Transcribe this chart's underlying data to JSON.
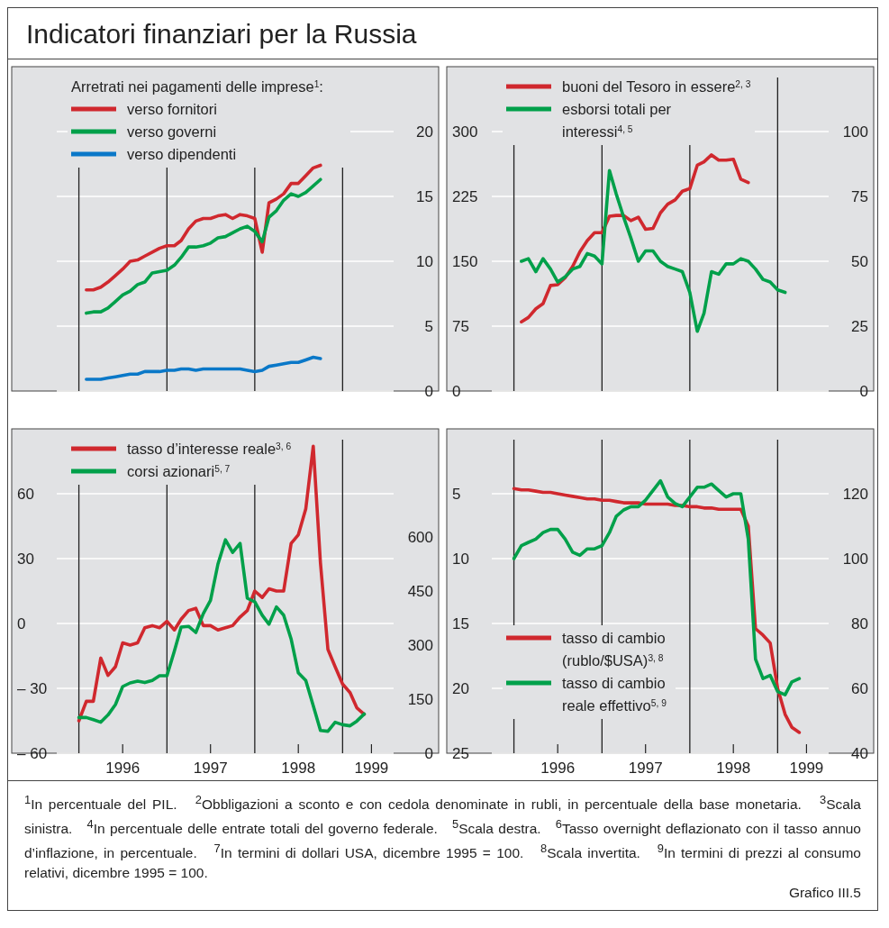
{
  "chart_data": [
    {
      "type": "line",
      "title": "Indicatori finanziari per la Russia",
      "legend_title": "Arretrati nei pagamenti delle imprese$^{1}$:",
      "legend": "top left",
      "grid": true,
      "tick_labels": "y",
      "xlim": [
        "1995-10",
        "1999-08"
      ],
      "xticks": [
        {
          "value": "1996-01",
          "label": null
        },
        {
          "value": "1997-01",
          "label": null
        },
        {
          "value": "1998-01",
          "label": null
        },
        {
          "value": "1999-01",
          "label": null
        }
      ],
      "y2lim": [
        0,
        25
      ],
      "y2ticks": [
        0,
        5,
        10,
        15,
        20
      ],
      "x": [
        "1996-02",
        "1996-03",
        "1996-04",
        "1996-05",
        "1996-06",
        "1996-07",
        "1996-08",
        "1996-09",
        "1996-10",
        "1996-11",
        "1996-12",
        "1997-01",
        "1997-02",
        "1997-03",
        "1997-04",
        "1997-05",
        "1997-06",
        "1997-07",
        "1997-08",
        "1997-09",
        "1997-10",
        "1997-11",
        "1997-12",
        "1998-01",
        "1998-02",
        "1998-03",
        "1998-04",
        "1998-05",
        "1998-06",
        "1998-07",
        "1998-08",
        "1998-09",
        "1998-10"
      ],
      "series": [
        {
          "name": "verso fornitori",
          "color": "#d0282e",
          "axis": "y2",
          "values": [
            7.8,
            7.8,
            8.0,
            8.4,
            8.9,
            9.4,
            10.0,
            10.1,
            10.4,
            10.7,
            11.0,
            11.2,
            11.2,
            11.6,
            12.5,
            13.1,
            13.3,
            13.3,
            13.5,
            13.6,
            13.3,
            13.6,
            13.5,
            13.3,
            10.7,
            14.5,
            14.8,
            15.2,
            16.0,
            16.0,
            16.6,
            17.2,
            17.4
          ]
        },
        {
          "name": "verso governi",
          "color": "#00a04a",
          "axis": "y2",
          "values": [
            6.0,
            6.1,
            6.1,
            6.4,
            6.9,
            7.4,
            7.7,
            8.2,
            8.4,
            9.1,
            9.2,
            9.3,
            9.7,
            10.3,
            11.1,
            11.1,
            11.2,
            11.4,
            11.8,
            11.9,
            12.2,
            12.5,
            12.7,
            12.3,
            11.5,
            13.4,
            13.9,
            14.7,
            15.2,
            15.0,
            15.3,
            15.8,
            16.3
          ]
        },
        {
          "name": "verso dipendenti",
          "color": "#0a78c8",
          "axis": "y2",
          "values": [
            0.9,
            0.9,
            0.9,
            1.0,
            1.1,
            1.2,
            1.3,
            1.3,
            1.5,
            1.5,
            1.5,
            1.6,
            1.6,
            1.7,
            1.7,
            1.6,
            1.7,
            1.7,
            1.7,
            1.7,
            1.7,
            1.7,
            1.6,
            1.5,
            1.6,
            1.9,
            2.0,
            2.1,
            2.2,
            2.2,
            2.4,
            2.6,
            2.5
          ]
        }
      ],
      "annotations": [
        "$^{1}$In percentuale del PIL.",
        "$^{2}$Obbligazioni a sconto e con cedola denominate in rubli, in percentuale della base monetaria.",
        "$^{3}$Scala sinistra.",
        "$^{4}$In percentuale delle entrate totali del governo federale.",
        "$^{5}$Scala destra.",
        "$^{6}$Tasso overnight deflazionato con il tasso annuo d’inflazione, in percentuale.",
        "$^{7}$In termini di dollari USA, dicembre 1995 = 100.",
        "$^{8}$Scala invertita.",
        "$^{9}$In termini di prezzi al consumo relativi, dicembre 1995 = 100.",
        "Grafico III.5"
      ]
    },
    {
      "type": "line",
      "legend": "top",
      "grid": true,
      "tick_labels": "y",
      "xlim": [
        "1995-10",
        "1999-08"
      ],
      "xticks": [
        {
          "value": "1996-01",
          "label": null
        },
        {
          "value": "1997-01",
          "label": null
        },
        {
          "value": "1998-01",
          "label": null
        },
        {
          "value": "1999-01",
          "label": null
        }
      ],
      "ylim": [
        0,
        375
      ],
      "yticks": [
        0,
        75,
        150,
        225,
        300
      ],
      "y2lim": [
        0,
        125
      ],
      "y2ticks": [
        0,
        25,
        50,
        75,
        100
      ],
      "x": [
        "1996-02",
        "1996-03",
        "1996-04",
        "1996-05",
        "1996-06",
        "1996-07",
        "1996-08",
        "1996-09",
        "1996-10",
        "1996-11",
        "1996-12",
        "1997-01",
        "1997-02",
        "1997-03",
        "1997-04",
        "1997-05",
        "1997-06",
        "1997-07",
        "1997-08",
        "1997-09",
        "1997-10",
        "1997-11",
        "1997-12",
        "1998-01",
        "1998-02",
        "1998-03",
        "1998-04",
        "1998-05",
        "1998-06",
        "1998-07",
        "1998-08",
        "1998-09",
        "1998-10",
        "1998-11",
        "1998-12",
        "1999-01",
        "1999-02"
      ],
      "series": [
        {
          "name": "buoni del Tesoro in essere$^{2, 3}$",
          "color": "#d0282e",
          "values": [
            80,
            85,
            95,
            101,
            122,
            123,
            131,
            144,
            161,
            174,
            183,
            183,
            202,
            203,
            203,
            197,
            201,
            187,
            188,
            206,
            216,
            221,
            231,
            234,
            261,
            265,
            273,
            267,
            267,
            268,
            245,
            241,
            null,
            null,
            null,
            null,
            null
          ]
        },
        {
          "name": "esborsi totali per interessi$^{4, 5}$",
          "color": "#00a04a",
          "axis": "y2",
          "values": [
            50,
            51,
            46,
            51,
            47,
            42,
            44,
            47,
            48,
            53,
            52,
            49,
            85,
            76,
            67,
            59,
            50,
            54,
            54,
            50,
            48,
            47,
            46,
            38,
            23,
            30,
            46,
            45,
            49,
            49,
            51,
            50,
            47,
            43,
            42,
            39,
            38
          ]
        }
      ]
    },
    {
      "type": "line",
      "legend": "top",
      "grid": true,
      "xlim": [
        "1995-10",
        "1999-08"
      ],
      "xticks": [
        {
          "value": "1996-01",
          "label": null
        },
        {
          "value": "1997-01",
          "label": null
        },
        {
          "value": "1998-01",
          "label": null
        },
        {
          "value": "1999-01",
          "label": null
        },
        {
          "value": "1996-07",
          "label": "1996"
        },
        {
          "value": "1997-07",
          "label": "1997"
        },
        {
          "value": "1998-07",
          "label": "1998"
        },
        {
          "value": "1999-05",
          "label": "1999"
        }
      ],
      "ylim": [
        -60,
        90
      ],
      "yticks": [
        {
          "value": -60,
          "label": "– 60"
        },
        {
          "value": -30,
          "label": "– 30"
        },
        0,
        30,
        60
      ],
      "y2lim": [
        0,
        900
      ],
      "y2ticks": [
        0,
        150,
        300,
        450,
        600
      ],
      "x": [
        "1996-01",
        "1996-02",
        "1996-03",
        "1996-04",
        "1996-05",
        "1996-06",
        "1996-07",
        "1996-08",
        "1996-09",
        "1996-10",
        "1996-11",
        "1996-12",
        "1997-01",
        "1997-02",
        "1997-03",
        "1997-04",
        "1997-05",
        "1997-06",
        "1997-07",
        "1997-08",
        "1997-09",
        "1997-10",
        "1997-11",
        "1997-12",
        "1998-01",
        "1998-02",
        "1998-03",
        "1998-04",
        "1998-05",
        "1998-06",
        "1998-07",
        "1998-08",
        "1998-09",
        "1998-10",
        "1998-11",
        "1998-12",
        "1999-01",
        "1999-02",
        "1999-03",
        "1999-04"
      ],
      "series": [
        {
          "name": "tasso d’interesse reale$^{3, 6}$",
          "color": "#d0282e",
          "values": [
            -45,
            -36,
            -36,
            -16,
            -24,
            -20,
            -9,
            -10,
            -9,
            -2,
            -1,
            -2,
            1,
            -3,
            2,
            6,
            7,
            -1,
            -1,
            -3,
            -2,
            -1,
            3,
            6,
            15,
            12,
            16,
            15,
            15,
            37,
            41,
            53,
            82,
            28,
            -12,
            -20,
            -28,
            -32,
            -39,
            -42
          ]
        },
        {
          "name": "corsi azionari$^{5, 7}$",
          "color": "#00a04a",
          "axis": "y2",
          "values": [
            99,
            99,
            93,
            86,
            106,
            135,
            185,
            195,
            200,
            196,
            202,
            215,
            215,
            284,
            350,
            352,
            335,
            387,
            424,
            525,
            592,
            557,
            582,
            430,
            420,
            383,
            358,
            406,
            383,
            317,
            223,
            202,
            132,
            63,
            61,
            86,
            79,
            76,
            89,
            109
          ]
        }
      ]
    },
    {
      "type": "line",
      "legend": "bottom",
      "grid": true,
      "xlim": [
        "1995-10",
        "1999-08"
      ],
      "xticks": [
        {
          "value": "1996-01",
          "label": null
        },
        {
          "value": "1997-01",
          "label": null
        },
        {
          "value": "1998-01",
          "label": null
        },
        {
          "value": "1999-01",
          "label": null
        },
        {
          "value": "1996-07",
          "label": "1996"
        },
        {
          "value": "1997-07",
          "label": "1997"
        },
        {
          "value": "1998-07",
          "label": "1998"
        },
        {
          "value": "1999-05",
          "label": "1999"
        }
      ],
      "ylim": [
        25,
        0
      ],
      "yticks": [
        5,
        10,
        15,
        20,
        25
      ],
      "y2lim": [
        40,
        140
      ],
      "y2ticks": [
        40,
        60,
        80,
        100,
        120
      ],
      "x": [
        "1996-01",
        "1996-02",
        "1996-03",
        "1996-04",
        "1996-05",
        "1996-06",
        "1996-07",
        "1996-08",
        "1996-09",
        "1996-10",
        "1996-11",
        "1996-12",
        "1997-01",
        "1997-02",
        "1997-03",
        "1997-04",
        "1997-05",
        "1997-06",
        "1997-07",
        "1997-08",
        "1997-09",
        "1997-10",
        "1997-11",
        "1997-12",
        "1998-01",
        "1998-02",
        "1998-03",
        "1998-04",
        "1998-05",
        "1998-06",
        "1998-07",
        "1998-08",
        "1998-09",
        "1998-10",
        "1998-11",
        "1998-12",
        "1999-01",
        "1999-02",
        "1999-03",
        "1999-04"
      ],
      "series": [
        {
          "name": "tasso di cambio (rublo/$USA)$^{3, 8}$",
          "color": "#d0282e",
          "values": [
            4.6,
            4.7,
            4.7,
            4.8,
            4.9,
            4.9,
            5.0,
            5.1,
            5.2,
            5.3,
            5.4,
            5.4,
            5.5,
            5.5,
            5.6,
            5.7,
            5.7,
            5.7,
            5.8,
            5.8,
            5.8,
            5.8,
            5.9,
            5.9,
            6.0,
            6.0,
            6.1,
            6.1,
            6.2,
            6.2,
            6.2,
            6.2,
            7.5,
            15.4,
            15.9,
            16.5,
            20.0,
            22.0,
            23.0,
            23.4
          ]
        },
        {
          "name": "tasso di cambio reale effettivo$^{5, 9}$",
          "color": "#00a04a",
          "axis": "y2",
          "values": [
            100,
            104,
            105,
            106,
            108,
            109,
            109,
            106,
            102,
            101,
            103,
            103,
            104,
            108,
            113,
            115,
            116,
            116,
            118,
            121,
            124,
            119,
            117,
            116,
            119,
            122,
            122,
            123,
            121,
            119,
            120,
            120,
            106,
            69,
            63,
            64,
            59,
            58,
            62,
            63
          ]
        }
      ]
    }
  ]
}
